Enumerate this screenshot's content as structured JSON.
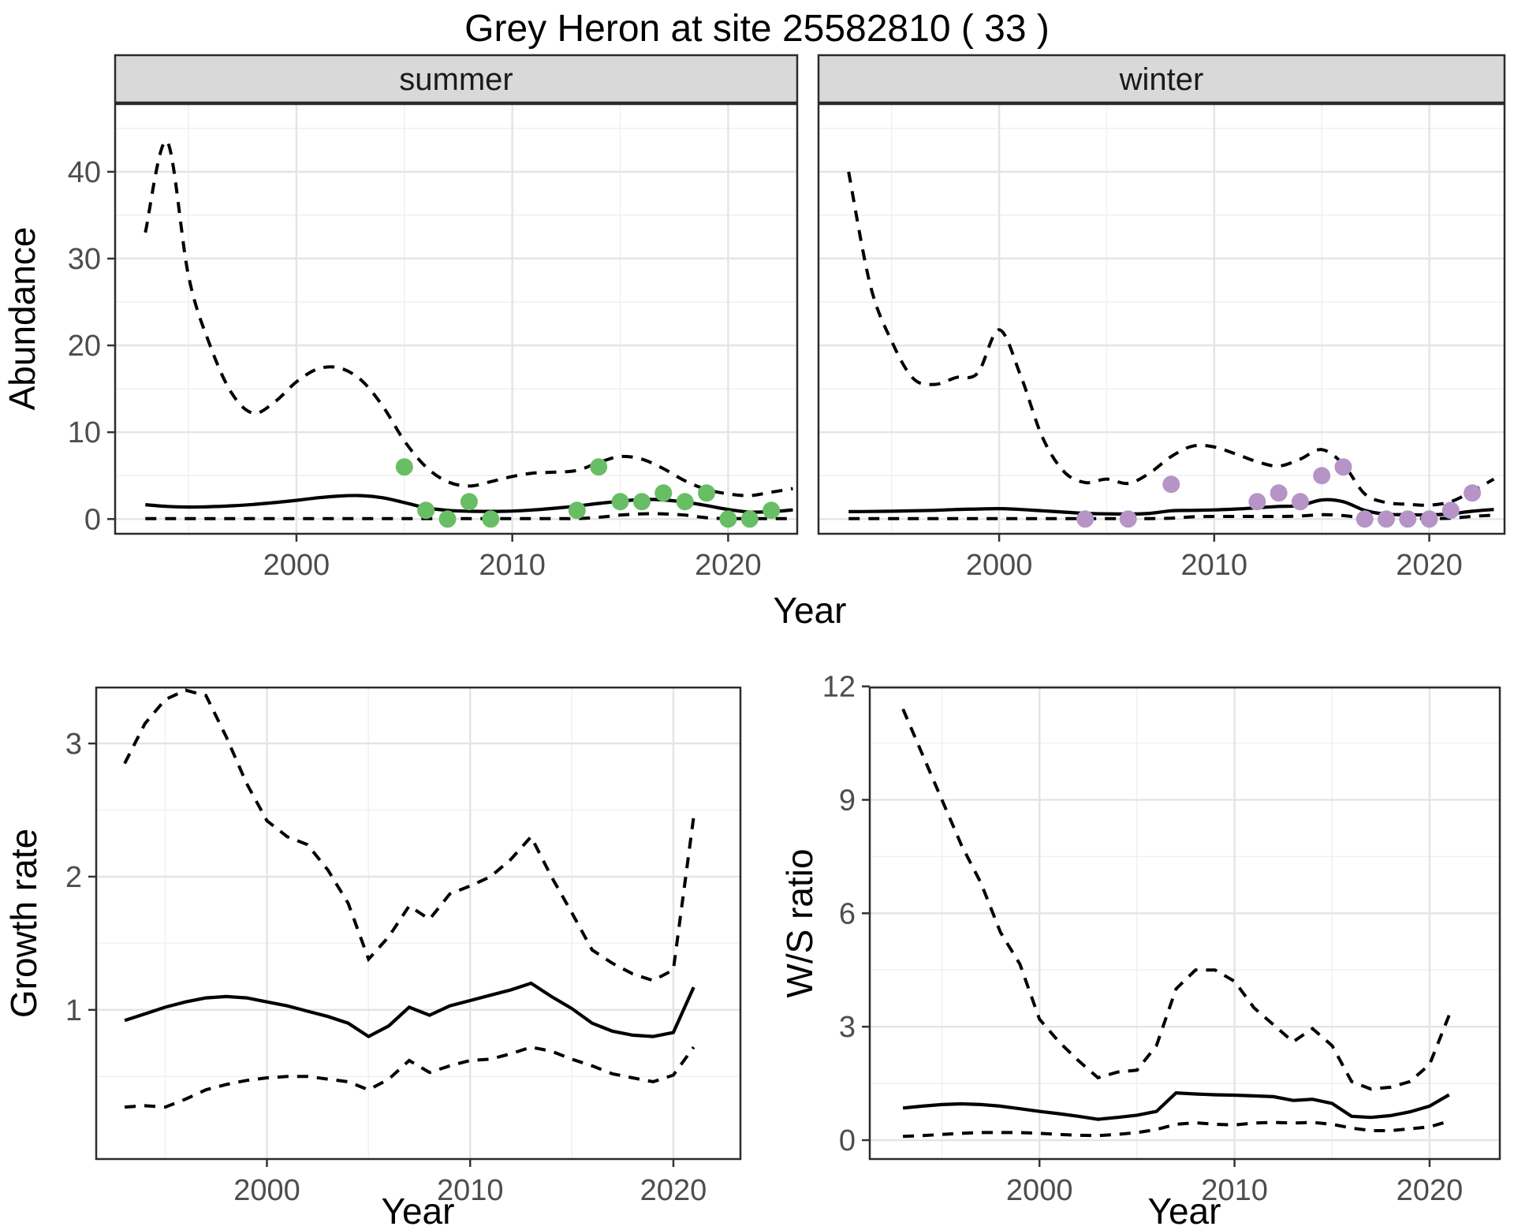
{
  "title": "Grey Heron at site 25582810 ( 33 )",
  "facet_labels": {
    "summer": "summer",
    "winter": "winter"
  },
  "axis_titles": {
    "abundance": "Abundance",
    "year": "Year",
    "growth_rate": "Growth rate",
    "ws_ratio": "W/S ratio"
  },
  "colors": {
    "summer_points": "#68BE64",
    "winter_points": "#B794C7",
    "line": "#000000",
    "grid_major": "#E4E4E4",
    "grid_minor": "#F1F1F1",
    "panel_border": "#2B2B2B",
    "tick_mark": "#333333",
    "tick_label": "#4D4D4D",
    "strip_fill": "#D9D9D9",
    "strip_border": "#2B2B2B"
  },
  "chart_data": [
    {
      "id": "abundance-summer",
      "type": "line",
      "facet": "summer",
      "xlabel": "Year",
      "ylabel": "Abundance",
      "x_ticks": [
        2000,
        2010,
        2020
      ],
      "y_ticks": [
        0,
        10,
        20,
        30,
        40
      ],
      "xlim": [
        1991.6,
        2023.2
      ],
      "ylim": [
        -1.7,
        47.8
      ],
      "legend": "solid = modelled mean, dashed = 95% CI, points = observed counts",
      "years": [
        1993,
        1994,
        1995,
        1996,
        1997,
        1998,
        1999,
        2000,
        2001,
        2002,
        2003,
        2004,
        2005,
        2006,
        2007,
        2008,
        2009,
        2010,
        2011,
        2012,
        2013,
        2014,
        2015,
        2016,
        2017,
        2018,
        2019,
        2020,
        2021,
        2022,
        2023
      ],
      "mean": [
        1.65,
        1.45,
        1.38,
        1.42,
        1.52,
        1.68,
        1.9,
        2.15,
        2.45,
        2.65,
        2.7,
        2.45,
        1.9,
        1.3,
        1.0,
        0.9,
        0.88,
        0.92,
        1.05,
        1.25,
        1.5,
        1.8,
        2.05,
        2.25,
        2.2,
        1.95,
        1.55,
        1.1,
        0.8,
        0.85,
        1.05
      ],
      "upper_ci": [
        33,
        43.5,
        28,
        20,
        14.5,
        12.2,
        13.5,
        15.8,
        17.3,
        17.4,
        16,
        13,
        9,
        6,
        4.3,
        3.8,
        4.3,
        4.9,
        5.3,
        5.4,
        5.6,
        6.5,
        7.2,
        6.9,
        5.8,
        4.4,
        3.4,
        2.9,
        2.7,
        3.1,
        3.5
      ],
      "lower_ci": [
        0.05,
        0.05,
        0.05,
        0.05,
        0.05,
        0.05,
        0.05,
        0.05,
        0.05,
        0.05,
        0.05,
        0.05,
        0.05,
        0.05,
        0.05,
        0.05,
        0.05,
        0.05,
        0.05,
        0.05,
        0.05,
        0.2,
        0.45,
        0.6,
        0.6,
        0.45,
        0.15,
        0.05,
        0.05,
        0.05,
        0.05
      ],
      "points": {
        "years": [
          2005,
          2006,
          2007,
          2008,
          2009,
          2013,
          2014,
          2015,
          2016,
          2017,
          2018,
          2019,
          2020,
          2021,
          2022
        ],
        "values": [
          6,
          1,
          0,
          2,
          0,
          1,
          6,
          2,
          2,
          3,
          2,
          3,
          0,
          0,
          1
        ]
      },
      "point_color": "#68BE64"
    },
    {
      "id": "abundance-winter",
      "type": "line",
      "facet": "winter",
      "xlabel": "Year",
      "ylabel": "Abundance",
      "x_ticks": [
        2000,
        2010,
        2020
      ],
      "y_ticks": [
        0,
        10,
        20,
        30,
        40
      ],
      "xlim": [
        1991.6,
        2023.5
      ],
      "ylim": [
        -1.7,
        47.8
      ],
      "legend": "solid = modelled mean, dashed = 95% CI, points = observed counts",
      "years": [
        1993,
        1994,
        1995,
        1996,
        1997,
        1998,
        1999,
        2000,
        2001,
        2002,
        2003,
        2004,
        2005,
        2006,
        2007,
        2008,
        2009,
        2010,
        2011,
        2012,
        2013,
        2014,
        2015,
        2016,
        2017,
        2018,
        2019,
        2020,
        2021,
        2022,
        2023
      ],
      "mean": [
        0.85,
        0.87,
        0.9,
        0.95,
        1.0,
        1.1,
        1.15,
        1.2,
        1.1,
        0.95,
        0.8,
        0.65,
        0.6,
        0.58,
        0.65,
        0.95,
        1.0,
        1.05,
        1.15,
        1.3,
        1.45,
        1.55,
        2.2,
        2.0,
        1.0,
        0.55,
        0.5,
        0.48,
        0.6,
        0.9,
        1.1
      ],
      "upper_ci": [
        40,
        27,
        20.5,
        16.2,
        15.5,
        16.3,
        16.8,
        21.8,
        16.5,
        9.5,
        5.5,
        4.2,
        4.6,
        4.1,
        5.3,
        7.2,
        8.4,
        8.3,
        7.5,
        6.6,
        6.1,
        6.9,
        8.0,
        6.3,
        2.9,
        1.9,
        1.7,
        1.6,
        2.0,
        3.2,
        4.6
      ],
      "lower_ci": [
        0.05,
        0.05,
        0.05,
        0.05,
        0.05,
        0.05,
        0.05,
        0.05,
        0.05,
        0.05,
        0.05,
        0.05,
        0.05,
        0.05,
        0.05,
        0.1,
        0.25,
        0.3,
        0.3,
        0.3,
        0.3,
        0.35,
        0.5,
        0.4,
        0.1,
        0.05,
        0.05,
        0.05,
        0.1,
        0.3,
        0.45
      ],
      "points": {
        "years": [
          2004,
          2006,
          2008,
          2012,
          2013,
          2014,
          2015,
          2016,
          2017,
          2018,
          2019,
          2020,
          2021,
          2022
        ],
        "values": [
          0,
          0,
          4,
          2,
          3,
          2,
          5,
          6,
          0,
          0,
          0,
          0,
          1,
          3
        ]
      },
      "point_color": "#B794C7"
    },
    {
      "id": "growth-rate",
      "type": "line",
      "facet": "",
      "xlabel": "Year",
      "ylabel": "Growth rate",
      "x_ticks": [
        2000,
        2010,
        2020
      ],
      "y_ticks": [
        1,
        2,
        3
      ],
      "xlim": [
        1991.6,
        2023.3
      ],
      "ylim": [
        -0.12,
        3.42
      ],
      "legend": "solid = mean growth rate, dashed = 95% CI",
      "years": [
        1993,
        1994,
        1995,
        1996,
        1997,
        1998,
        1999,
        2000,
        2001,
        2002,
        2003,
        2004,
        2005,
        2006,
        2007,
        2008,
        2009,
        2010,
        2011,
        2012,
        2013,
        2014,
        2015,
        2016,
        2017,
        2018,
        2019,
        2020,
        2021
      ],
      "mean": [
        0.92,
        0.97,
        1.02,
        1.06,
        1.09,
        1.1,
        1.09,
        1.06,
        1.03,
        0.99,
        0.95,
        0.9,
        0.8,
        0.88,
        1.02,
        0.96,
        1.03,
        1.07,
        1.11,
        1.15,
        1.2,
        1.1,
        1.01,
        0.9,
        0.84,
        0.81,
        0.8,
        0.83,
        1.17
      ],
      "upper_ci": [
        2.85,
        3.15,
        3.33,
        3.4,
        3.36,
        3.05,
        2.7,
        2.42,
        2.3,
        2.24,
        2.05,
        1.8,
        1.38,
        1.55,
        1.78,
        1.68,
        1.87,
        1.93,
        2.0,
        2.13,
        2.3,
        2.0,
        1.73,
        1.45,
        1.35,
        1.27,
        1.22,
        1.3,
        2.45
      ],
      "lower_ci": [
        0.27,
        0.28,
        0.27,
        0.33,
        0.4,
        0.44,
        0.47,
        0.49,
        0.5,
        0.5,
        0.48,
        0.46,
        0.4,
        0.48,
        0.62,
        0.53,
        0.58,
        0.62,
        0.63,
        0.67,
        0.72,
        0.69,
        0.63,
        0.58,
        0.52,
        0.49,
        0.46,
        0.51,
        0.72
      ]
    },
    {
      "id": "ws-ratio",
      "type": "line",
      "facet": "",
      "xlabel": "Year",
      "ylabel": "W/S ratio",
      "x_ticks": [
        2000,
        2010,
        2020
      ],
      "y_ticks": [
        0,
        3,
        6,
        9,
        12
      ],
      "xlim": [
        1991.3,
        2023.6
      ],
      "ylim": [
        -0.5,
        11.97
      ],
      "legend": "solid = mean winter/summer ratio, dashed = 95% CI",
      "years": [
        1993,
        1994,
        1995,
        1996,
        1997,
        1998,
        1999,
        2000,
        2001,
        2002,
        2003,
        2004,
        2005,
        2006,
        2007,
        2008,
        2009,
        2010,
        2011,
        2012,
        2013,
        2014,
        2015,
        2016,
        2017,
        2018,
        2019,
        2020,
        2021
      ],
      "mean": [
        0.85,
        0.9,
        0.94,
        0.96,
        0.94,
        0.9,
        0.83,
        0.76,
        0.7,
        0.63,
        0.55,
        0.6,
        0.66,
        0.76,
        1.25,
        1.22,
        1.2,
        1.19,
        1.17,
        1.15,
        1.05,
        1.08,
        0.97,
        0.63,
        0.6,
        0.65,
        0.75,
        0.9,
        1.2
      ],
      "upper_ci": [
        11.4,
        10.2,
        9.0,
        7.8,
        6.8,
        5.5,
        4.65,
        3.2,
        2.6,
        2.1,
        1.65,
        1.8,
        1.85,
        2.5,
        4.0,
        4.5,
        4.5,
        4.2,
        3.5,
        3.05,
        2.6,
        2.95,
        2.5,
        1.55,
        1.35,
        1.4,
        1.55,
        2.0,
        3.3
      ],
      "lower_ci": [
        0.1,
        0.12,
        0.15,
        0.18,
        0.2,
        0.2,
        0.2,
        0.18,
        0.15,
        0.13,
        0.12,
        0.15,
        0.2,
        0.28,
        0.42,
        0.46,
        0.42,
        0.4,
        0.45,
        0.47,
        0.45,
        0.47,
        0.42,
        0.32,
        0.25,
        0.25,
        0.3,
        0.35,
        0.5
      ]
    }
  ]
}
